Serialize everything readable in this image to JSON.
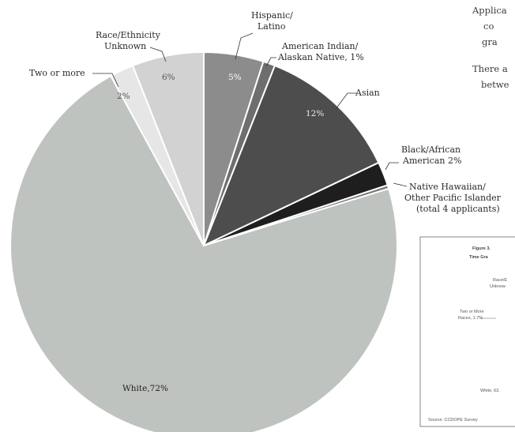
{
  "chart_data": {
    "type": "pie",
    "slices": [
      {
        "label": "Hispanic/ Latino",
        "value": 5,
        "color": "#8c8c8c"
      },
      {
        "label": "American Indian/ Alaskan Native, 1%",
        "value": 1,
        "color": "#6e6e6e"
      },
      {
        "label": "Asian",
        "value": 12,
        "color": "#4d4d4d"
      },
      {
        "label": "Black/African American 2%",
        "value": 2,
        "color": "#1e1e1e"
      },
      {
        "label": "Native Hawaiian/ Other Pacific Islander (total 4 applicants)",
        "value": 0.3,
        "color": "#777777"
      },
      {
        "label": "White,72%",
        "value": 72,
        "color": "#bfc3c0"
      },
      {
        "label": "Two or more",
        "value": 2,
        "color": "#e6e6e6"
      },
      {
        "label": "Race/Ethnicity Unknown",
        "value": 6,
        "color": "#d2d2d2"
      }
    ],
    "inside_labels": {
      "hispanic": "5%",
      "asian": "12%",
      "white": "White,72%",
      "two_or_more": "2%",
      "unknown": "6%"
    },
    "callouts": {
      "hispanic": [
        "Hispanic/",
        "Latino"
      ],
      "american_indian": [
        "American Indian/",
        "Alaskan Native, 1%"
      ],
      "asian": [
        "Asian"
      ],
      "black": [
        "Black/African",
        "American 2%"
      ],
      "native_hawaiian": [
        "Native Hawaiian/",
        "Other Pacific Islander",
        "(total 4 applicants)"
      ],
      "two_or_more": [
        "Two or more"
      ],
      "unknown": [
        "Race/Ethnicity",
        "Unknown"
      ]
    }
  },
  "side_text": {
    "lines": [
      "Applica",
      "co",
      "gra",
      "There a",
      "betwe"
    ]
  },
  "inset_figure": {
    "title_lines": [
      "Figure 3.",
      "Time Gra"
    ],
    "labels": [
      "Race/E",
      "Unknow",
      "Two or More",
      "Races, 1.7%",
      "White, 63.",
      "Source: CCDOPE Survey"
    ]
  }
}
